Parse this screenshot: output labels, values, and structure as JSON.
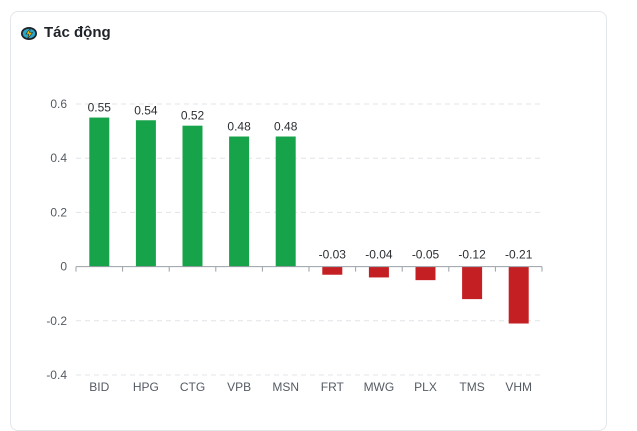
{
  "header": {
    "title": "Tác động",
    "icon": "lightning-badge-icon"
  },
  "colors": {
    "positive": "#17a34a",
    "negative": "#c41f22",
    "grid": "#e2e4e7",
    "axis": "#9aa0a6"
  },
  "chart_data": {
    "type": "bar",
    "title": "Tác động",
    "xlabel": "",
    "ylabel": "",
    "categories": [
      "BID",
      "HPG",
      "CTG",
      "VPB",
      "MSN",
      "FRT",
      "MWG",
      "PLX",
      "TMS",
      "VHM"
    ],
    "values": [
      0.55,
      0.54,
      0.52,
      0.48,
      0.48,
      -0.03,
      -0.04,
      -0.05,
      -0.12,
      -0.21
    ],
    "labels": [
      "0.55",
      "0.54",
      "0.52",
      "0.48",
      "0.48",
      "-0.03",
      "-0.04",
      "-0.05",
      "-0.12",
      "-0.21"
    ],
    "yticks": [
      0.6,
      0.4,
      0.2,
      0,
      -0.2,
      -0.4
    ],
    "ytick_labels": [
      "0.6",
      "0.4",
      "0.2",
      "0",
      "-0.2",
      "-0.4"
    ],
    "ylim": [
      -0.4,
      0.6
    ],
    "grid": true
  }
}
